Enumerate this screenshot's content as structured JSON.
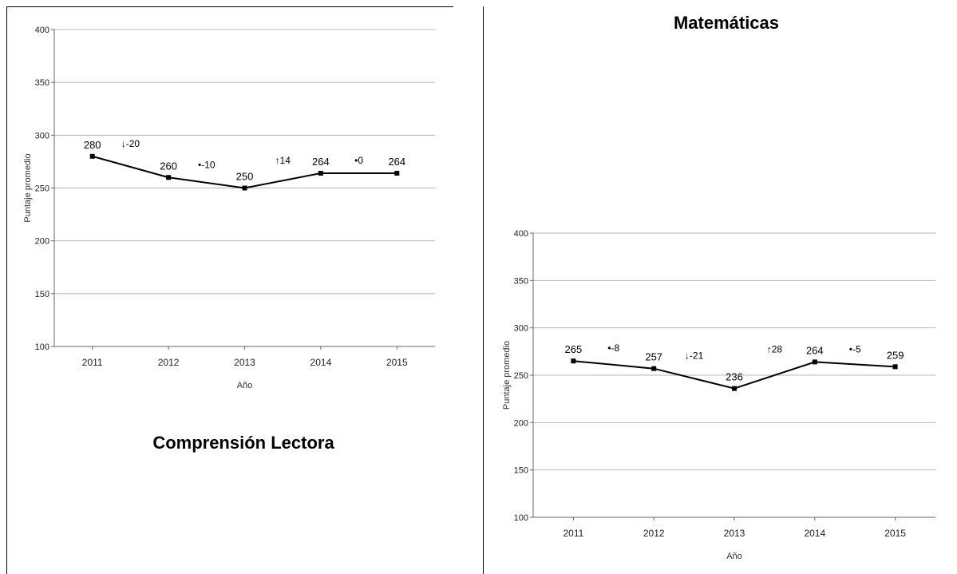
{
  "panels": {
    "left_title": "Comprensión Lectora",
    "right_title": "Matemáticas"
  },
  "chart_data": [
    {
      "type": "line",
      "title": "Comprensión Lectora",
      "xlabel": "Año",
      "ylabel": "Puntaje promedio",
      "categories": [
        "2011",
        "2012",
        "2013",
        "2014",
        "2015"
      ],
      "values": [
        280,
        260,
        250,
        264,
        264
      ],
      "data_labels": [
        "280",
        "260",
        "250",
        "264",
        "264"
      ],
      "change_labels": [
        "↓-20",
        "•-10",
        "↑14",
        "•0"
      ],
      "ylim": [
        100,
        400
      ],
      "yticks": [
        "100",
        "150",
        "200",
        "250",
        "300",
        "350",
        "400"
      ],
      "grid": true,
      "color": "#000000"
    },
    {
      "type": "line",
      "title": "Matemáticas",
      "xlabel": "Año",
      "ylabel": "Puntaje promedio",
      "categories": [
        "2011",
        "2012",
        "2013",
        "2014",
        "2015"
      ],
      "values": [
        265,
        257,
        236,
        264,
        259
      ],
      "data_labels": [
        "265",
        "257",
        "236",
        "264",
        "259"
      ],
      "change_labels": [
        "•-8",
        "↓-21",
        "↑28",
        "•-5"
      ],
      "ylim": [
        100,
        400
      ],
      "yticks": [
        "100",
        "150",
        "200",
        "250",
        "300",
        "350",
        "400"
      ],
      "grid": true,
      "color": "#000000"
    }
  ]
}
